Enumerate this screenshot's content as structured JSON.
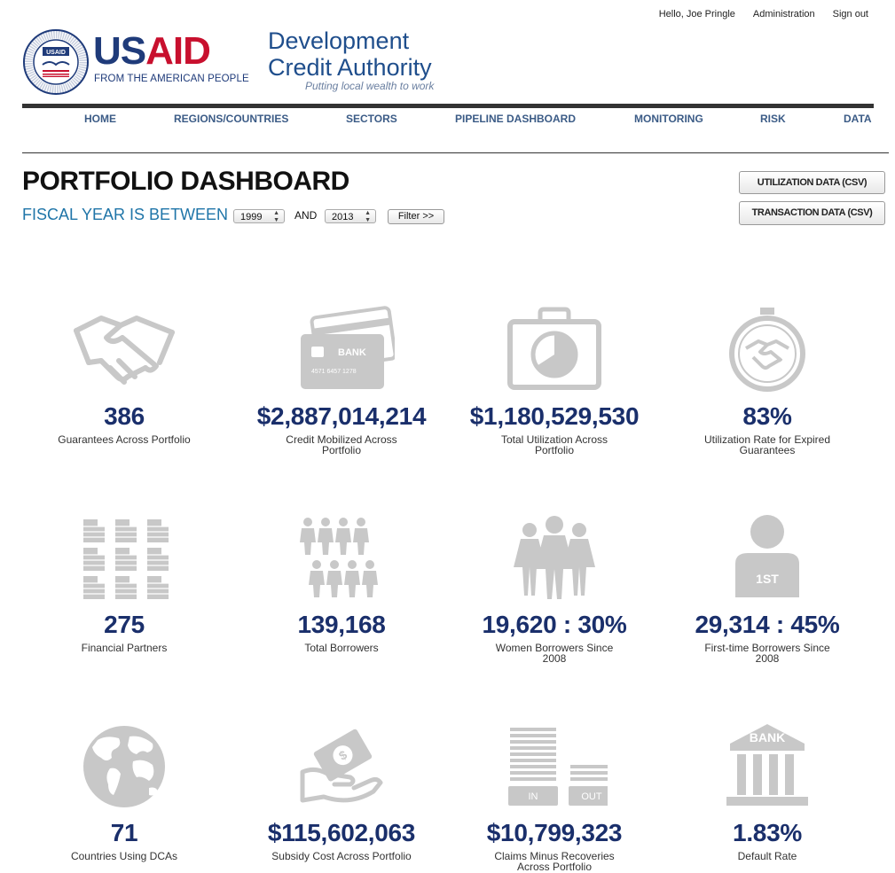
{
  "top_links": {
    "greeting": "Hello, Joe Pringle",
    "admin": "Administration",
    "signout": "Sign out"
  },
  "logo": {
    "us": "US",
    "aid": "AID",
    "tagline": "FROM THE AMERICAN PEOPLE",
    "seal_text": "UNITED STATES AGENCY · INTERNATIONAL DEVELOPMENT",
    "seal_center": "USAID"
  },
  "dca": {
    "line1": "Development",
    "line2": "Credit Authority",
    "tagline": "Putting local wealth to work"
  },
  "nav": [
    "HOME",
    "REGIONS/COUNTRIES",
    "SECTORS",
    "PIPELINE DASHBOARD",
    "MONITORING",
    "RISK",
    "DATA"
  ],
  "page": {
    "title": "PORTFOLIO DASHBOARD",
    "fy_label": "FISCAL YEAR IS BETWEEN",
    "from_year": "1999",
    "and_label": "AND",
    "to_year": "2013",
    "filter_label": "Filter >>"
  },
  "buttons": {
    "utilization": "UTILIZATION DATA (CSV)",
    "transaction": "TRANSACTION DATA (CSV)"
  },
  "metrics": [
    {
      "icon": "handshake-icon",
      "value": "386",
      "label": "Guarantees Across Portfolio"
    },
    {
      "icon": "bank-card-icon",
      "value": "$2,887,014,214",
      "label": "Credit Mobilized Across Portfolio",
      "card_text": "BANK",
      "card_number": "4571 6457 1278"
    },
    {
      "icon": "briefcase-pie-icon",
      "value": "$1,180,529,530",
      "label": "Total Utilization Across Portfolio"
    },
    {
      "icon": "stopwatch-handshake-icon",
      "value": "83%",
      "label": "Utilization Rate for Expired Guarantees"
    },
    {
      "icon": "buildings-icon",
      "value": "275",
      "label": "Financial Partners"
    },
    {
      "icon": "people-group-icon",
      "value": "139,168",
      "label": "Total Borrowers"
    },
    {
      "icon": "women-icon",
      "value": "19,620 : 30%",
      "label": "Women Borrowers Since 2008"
    },
    {
      "icon": "first-person-icon",
      "value": "29,314 : 45%",
      "label": "First-time Borrowers Since 2008",
      "badge": "1ST"
    },
    {
      "icon": "globe-icon",
      "value": "71",
      "label": "Countries Using DCAs"
    },
    {
      "icon": "hand-money-icon",
      "value": "$115,602,063",
      "label": "Subsidy Cost Across Portfolio"
    },
    {
      "icon": "in-out-stack-icon",
      "value": "$10,799,323",
      "label": "Claims Minus Recoveries Across Portfolio",
      "in_label": "IN",
      "out_label": "OUT"
    },
    {
      "icon": "bank-building-icon",
      "value": "1.83%",
      "label": "Default Rate",
      "bank_text": "BANK"
    }
  ],
  "colors": {
    "icon_gray": "#c8c8c8",
    "value_navy": "#1a2f6b",
    "nav_blue": "#3b5b86",
    "fy_blue": "#1f75a8"
  }
}
